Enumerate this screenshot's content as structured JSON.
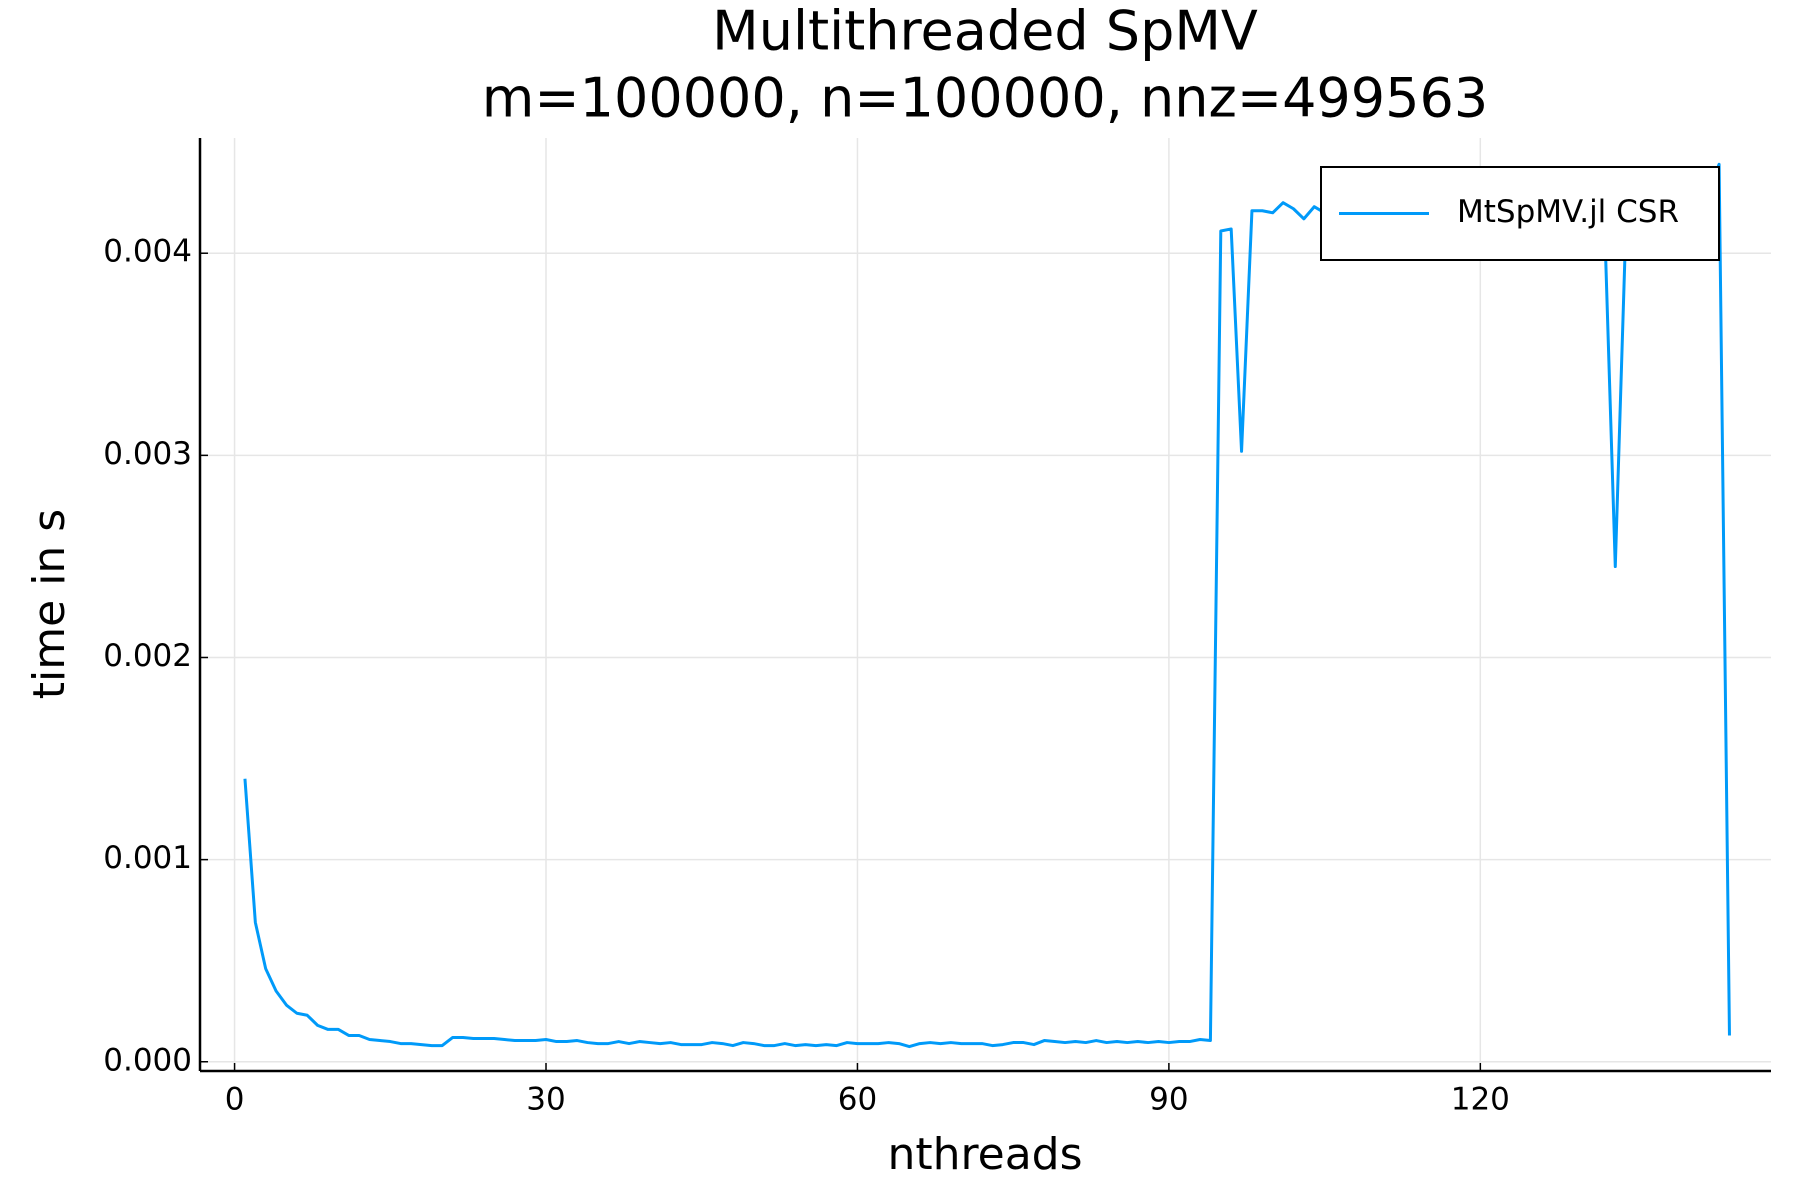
{
  "chart_data": {
    "type": "line",
    "title": "Multithreaded SpMV",
    "subtitle": "m=100000, n=100000, nnz=499563",
    "x_label": "nthreads",
    "y_label": "time in s",
    "x": [
      1,
      2,
      3,
      4,
      5,
      6,
      7,
      8,
      9,
      10,
      11,
      12,
      13,
      14,
      15,
      16,
      17,
      18,
      19,
      20,
      21,
      22,
      23,
      24,
      25,
      26,
      27,
      28,
      29,
      30,
      31,
      32,
      33,
      34,
      35,
      36,
      37,
      38,
      39,
      40,
      41,
      42,
      43,
      44,
      45,
      46,
      47,
      48,
      49,
      50,
      51,
      52,
      53,
      54,
      55,
      56,
      57,
      58,
      59,
      60,
      61,
      62,
      63,
      64,
      65,
      66,
      67,
      68,
      69,
      70,
      71,
      72,
      73,
      74,
      75,
      76,
      77,
      78,
      79,
      80,
      81,
      82,
      83,
      84,
      85,
      86,
      87,
      88,
      89,
      90,
      91,
      92,
      93,
      94,
      95,
      96,
      97,
      98,
      99,
      100,
      101,
      102,
      103,
      104,
      105,
      106,
      107,
      108,
      109,
      110,
      111,
      112,
      113,
      114,
      115,
      116,
      117,
      118,
      119,
      120,
      121,
      122,
      123,
      124,
      125,
      126,
      127,
      128,
      129,
      130,
      131,
      132,
      133,
      134,
      135,
      136,
      137,
      138,
      139,
      140,
      141,
      142,
      143,
      144
    ],
    "series": [
      {
        "name": "MtSpMV.jl CSR",
        "color": "#009af9",
        "values": [
          0.0014,
          0.00069,
          0.00046,
          0.00035,
          0.00028,
          0.00024,
          0.00023,
          0.00018,
          0.00016,
          0.00016,
          0.00013,
          0.00013,
          0.00011,
          0.000105,
          0.0001,
          9e-05,
          9e-05,
          8.5e-05,
          8e-05,
          8e-05,
          0.00012,
          0.00012,
          0.000115,
          0.000115,
          0.000115,
          0.00011,
          0.000105,
          0.000105,
          0.000105,
          0.00011,
          0.0001,
          0.0001,
          0.000105,
          9.5e-05,
          9e-05,
          9e-05,
          0.0001,
          9e-05,
          0.0001,
          9.5e-05,
          9e-05,
          9.5e-05,
          8.5e-05,
          8.5e-05,
          8.5e-05,
          9.5e-05,
          9e-05,
          8e-05,
          9.5e-05,
          9e-05,
          8e-05,
          8e-05,
          9e-05,
          8e-05,
          8.5e-05,
          8e-05,
          8.5e-05,
          8e-05,
          9.5e-05,
          9e-05,
          9e-05,
          9e-05,
          9.5e-05,
          9e-05,
          7.5e-05,
          9e-05,
          9.5e-05,
          9e-05,
          9.5e-05,
          9e-05,
          9e-05,
          9e-05,
          8e-05,
          8.5e-05,
          9.5e-05,
          9.5e-05,
          8.5e-05,
          0.000105,
          0.0001,
          9.5e-05,
          0.0001,
          9.5e-05,
          0.000105,
          9.5e-05,
          0.0001,
          9.5e-05,
          0.0001,
          9.5e-05,
          0.0001,
          9.5e-05,
          0.0001,
          0.0001,
          0.00011,
          0.000105,
          0.00411,
          0.00412,
          0.00302,
          0.00421,
          0.00421,
          0.0042,
          0.00425,
          0.00422,
          0.00417,
          0.00423,
          0.0042,
          0.00424,
          0.00426,
          0.00425,
          0.00427,
          0.00424,
          0.00426,
          0.00428,
          0.00425,
          0.00427,
          0.00426,
          0.00428,
          0.00427,
          0.00425,
          0.00427,
          0.00428,
          0.00426,
          0.00427,
          0.00429,
          0.00426,
          0.00428,
          0.00427,
          0.00425,
          0.00427,
          0.00428,
          0.00426,
          0.00422,
          0.0041,
          0.00245,
          0.0041,
          0.00428,
          0.00429,
          0.00427,
          0.00429,
          0.00428,
          0.0043,
          0.00429,
          0.0043,
          0.00444,
          0.00013
        ]
      }
    ],
    "xlim": [
      -3.33,
      148
    ],
    "ylim": [
      -4.57e-05,
      0.00457
    ],
    "xticks": [
      0,
      30,
      60,
      90,
      120
    ],
    "yticks": [
      {
        "value": 0,
        "label": "0.000"
      },
      0.001,
      0.002,
      0.003,
      0.004
    ],
    "grid": true,
    "legend": "upper right"
  }
}
